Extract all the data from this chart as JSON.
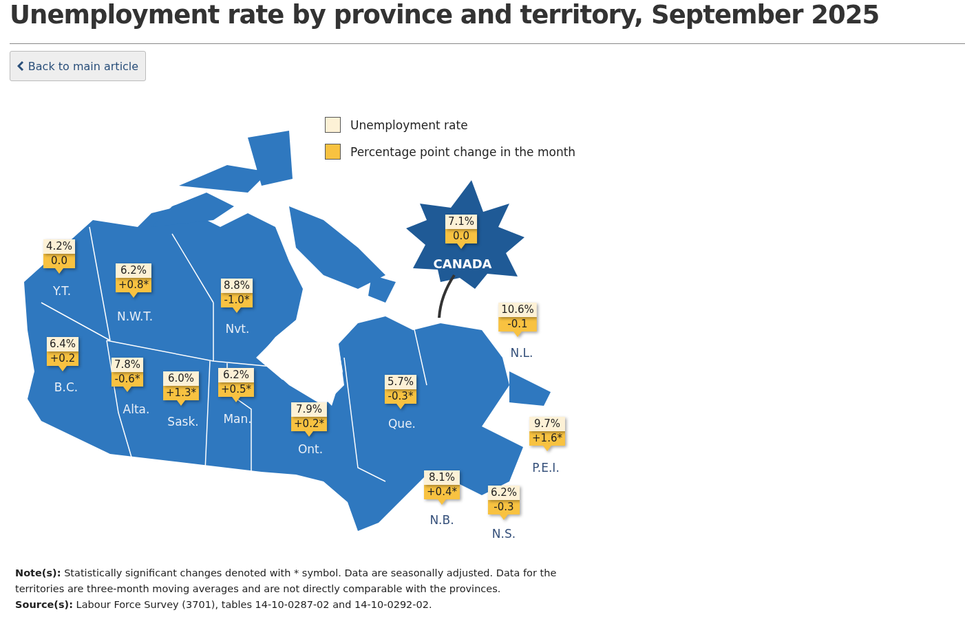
{
  "chart_data": {
    "type": "other",
    "title": "Unemployment rate by province and territory, September 2025",
    "categories": [
      "CANADA",
      "Y.T.",
      "N.W.T.",
      "Nvt.",
      "B.C.",
      "Alta.",
      "Sask.",
      "Man.",
      "Ont.",
      "Que.",
      "N.L.",
      "P.E.I.",
      "N.B.",
      "N.S."
    ],
    "series": [
      {
        "name": "Unemployment rate",
        "color": "#fdf1d6",
        "values": [
          7.1,
          4.2,
          6.2,
          8.8,
          6.4,
          7.8,
          6.0,
          6.2,
          7.9,
          5.7,
          10.6,
          9.7,
          8.1,
          6.2
        ],
        "value_labels": [
          "7.1%",
          "4.2%",
          "6.2%",
          "8.8%",
          "6.4%",
          "7.8%",
          "6.0%",
          "6.2%",
          "7.9%",
          "5.7%",
          "10.6%",
          "9.7%",
          "8.1%",
          "6.2%"
        ]
      },
      {
        "name": "Percentage point change in the month",
        "color": "#f8c241",
        "values": [
          0.0,
          0.0,
          0.8,
          -1.0,
          0.2,
          -0.6,
          1.3,
          0.5,
          0.2,
          -0.3,
          -0.1,
          1.6,
          0.4,
          -0.3
        ],
        "value_labels": [
          "0.0",
          "0.0",
          "+0.8*",
          "-1.0*",
          "+0.2",
          "-0.6*",
          "+1.3*",
          "+0.5*",
          "+0.2*",
          "-0.3*",
          "-0.1",
          "+1.6*",
          "+0.4*",
          "-0.3"
        ]
      }
    ],
    "legend": "top",
    "annotations": [
      "Back to main article",
      "Note(s): Statistically significant changes denoted with * symbol. Data are seasonally adjusted. Data for the territories are three-month moving averages and are not directly comparable with the provinces.",
      "Source(s): Labour Force Survey (3701), tables 14-10-0287-02 and 14-10-0292-02."
    ]
  }
}
